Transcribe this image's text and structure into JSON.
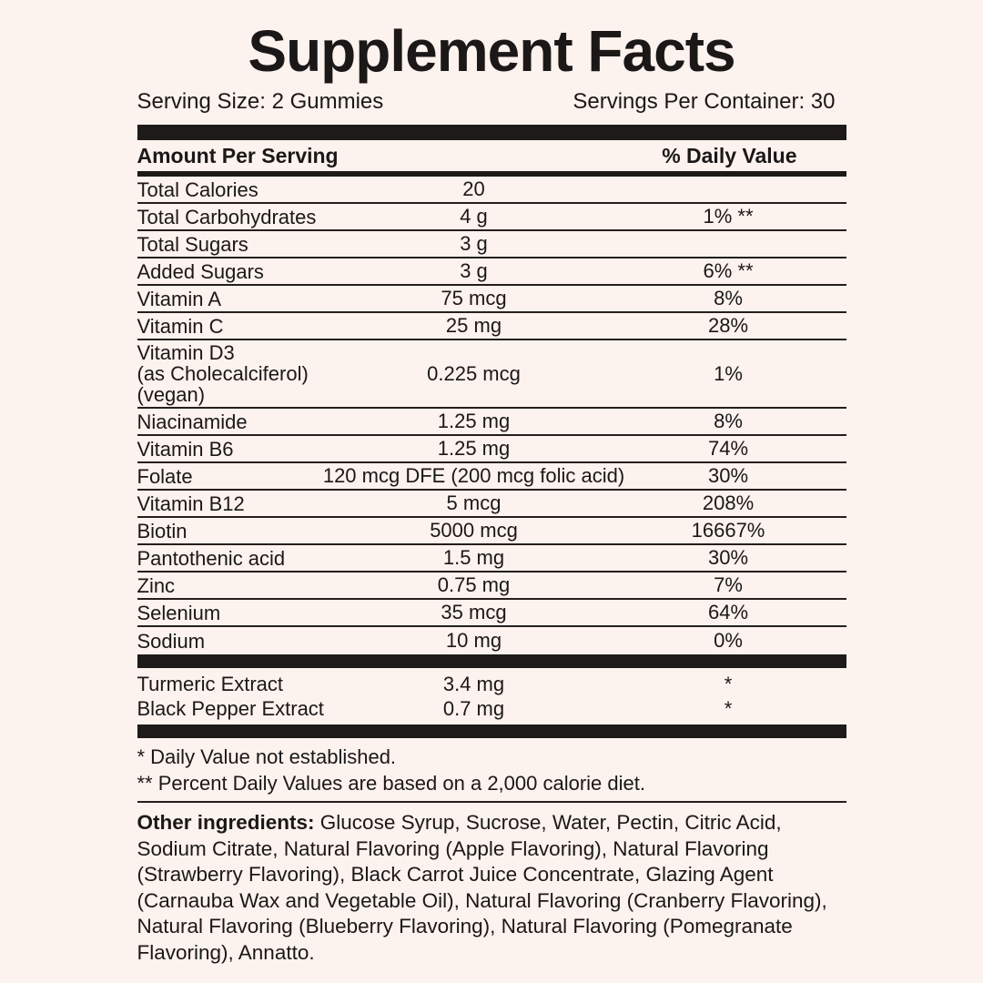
{
  "title": "Supplement Facts",
  "serving": {
    "size_label": "Serving Size: 2 Gummies",
    "per_container_label": "Servings Per Container: 30"
  },
  "table": {
    "header": {
      "amount": "Amount Per Serving",
      "daily_value": "% Daily Value"
    },
    "rows": [
      {
        "name": "Total Calories",
        "amount": "20",
        "dv": ""
      },
      {
        "name": "Total Carbohydrates",
        "amount": "4 g",
        "dv": "1% **"
      },
      {
        "name": "Total Sugars",
        "amount": "3 g",
        "dv": ""
      },
      {
        "name": "Added Sugars",
        "amount": "3 g",
        "dv": "6% **"
      },
      {
        "name": "Vitamin A",
        "amount": "75 mcg",
        "dv": "8%"
      },
      {
        "name": "Vitamin C",
        "amount": "25 mg",
        "dv": "28%"
      },
      {
        "name": "Vitamin D3",
        "name_line2": "(as Cholecalciferol) (vegan)",
        "amount": "0.225 mcg",
        "dv": "1%"
      },
      {
        "name": "Niacinamide",
        "amount": "1.25 mg",
        "dv": "8%"
      },
      {
        "name": "Vitamin B6",
        "amount": "1.25 mg",
        "dv": "74%"
      },
      {
        "name": "Folate",
        "amount": "120 mcg DFE (200 mcg folic acid)",
        "dv": "30%"
      },
      {
        "name": "Vitamin B12",
        "amount": "5 mcg",
        "dv": "208%"
      },
      {
        "name": "Biotin",
        "amount": "5000 mcg",
        "dv": "16667%"
      },
      {
        "name": "Pantothenic acid",
        "amount": "1.5 mg",
        "dv": "30%"
      },
      {
        "name": "Zinc",
        "amount": "0.75 mg",
        "dv": "7%"
      },
      {
        "name": "Selenium",
        "amount": "35 mcg",
        "dv": "64%"
      },
      {
        "name": "Sodium",
        "amount": "10 mg",
        "dv": "0%"
      }
    ],
    "extras": [
      {
        "name": "Turmeric Extract",
        "amount": "3.4 mg",
        "dv": "*"
      },
      {
        "name": "Black Pepper Extract",
        "amount": "0.7 mg",
        "dv": "*"
      }
    ]
  },
  "footnotes": [
    "* Daily Value not established.",
    "** Percent Daily Values are based on a 2,000 calorie diet."
  ],
  "other_ingredients": {
    "label": "Other ingredients:",
    "text": "Glucose Syrup, Sucrose, Water, Pectin, Citric Acid, Sodium Citrate, Natural Flavoring (Apple Flavoring), Natural Flavoring (Strawberry Flavoring), Black Carrot Juice Concentrate, Glazing Agent (Carnauba Wax and Vegetable Oil), Natural Flavoring (Cranberry Flavoring), Natural Flavoring (Blueberry Flavoring), Natural Flavoring (Pomegranate Flavoring), Annatto."
  },
  "colors": {
    "background": "#fcf2ee",
    "ink": "#1b1817",
    "rule": "#241f1c",
    "bar": "#1e1a18"
  }
}
